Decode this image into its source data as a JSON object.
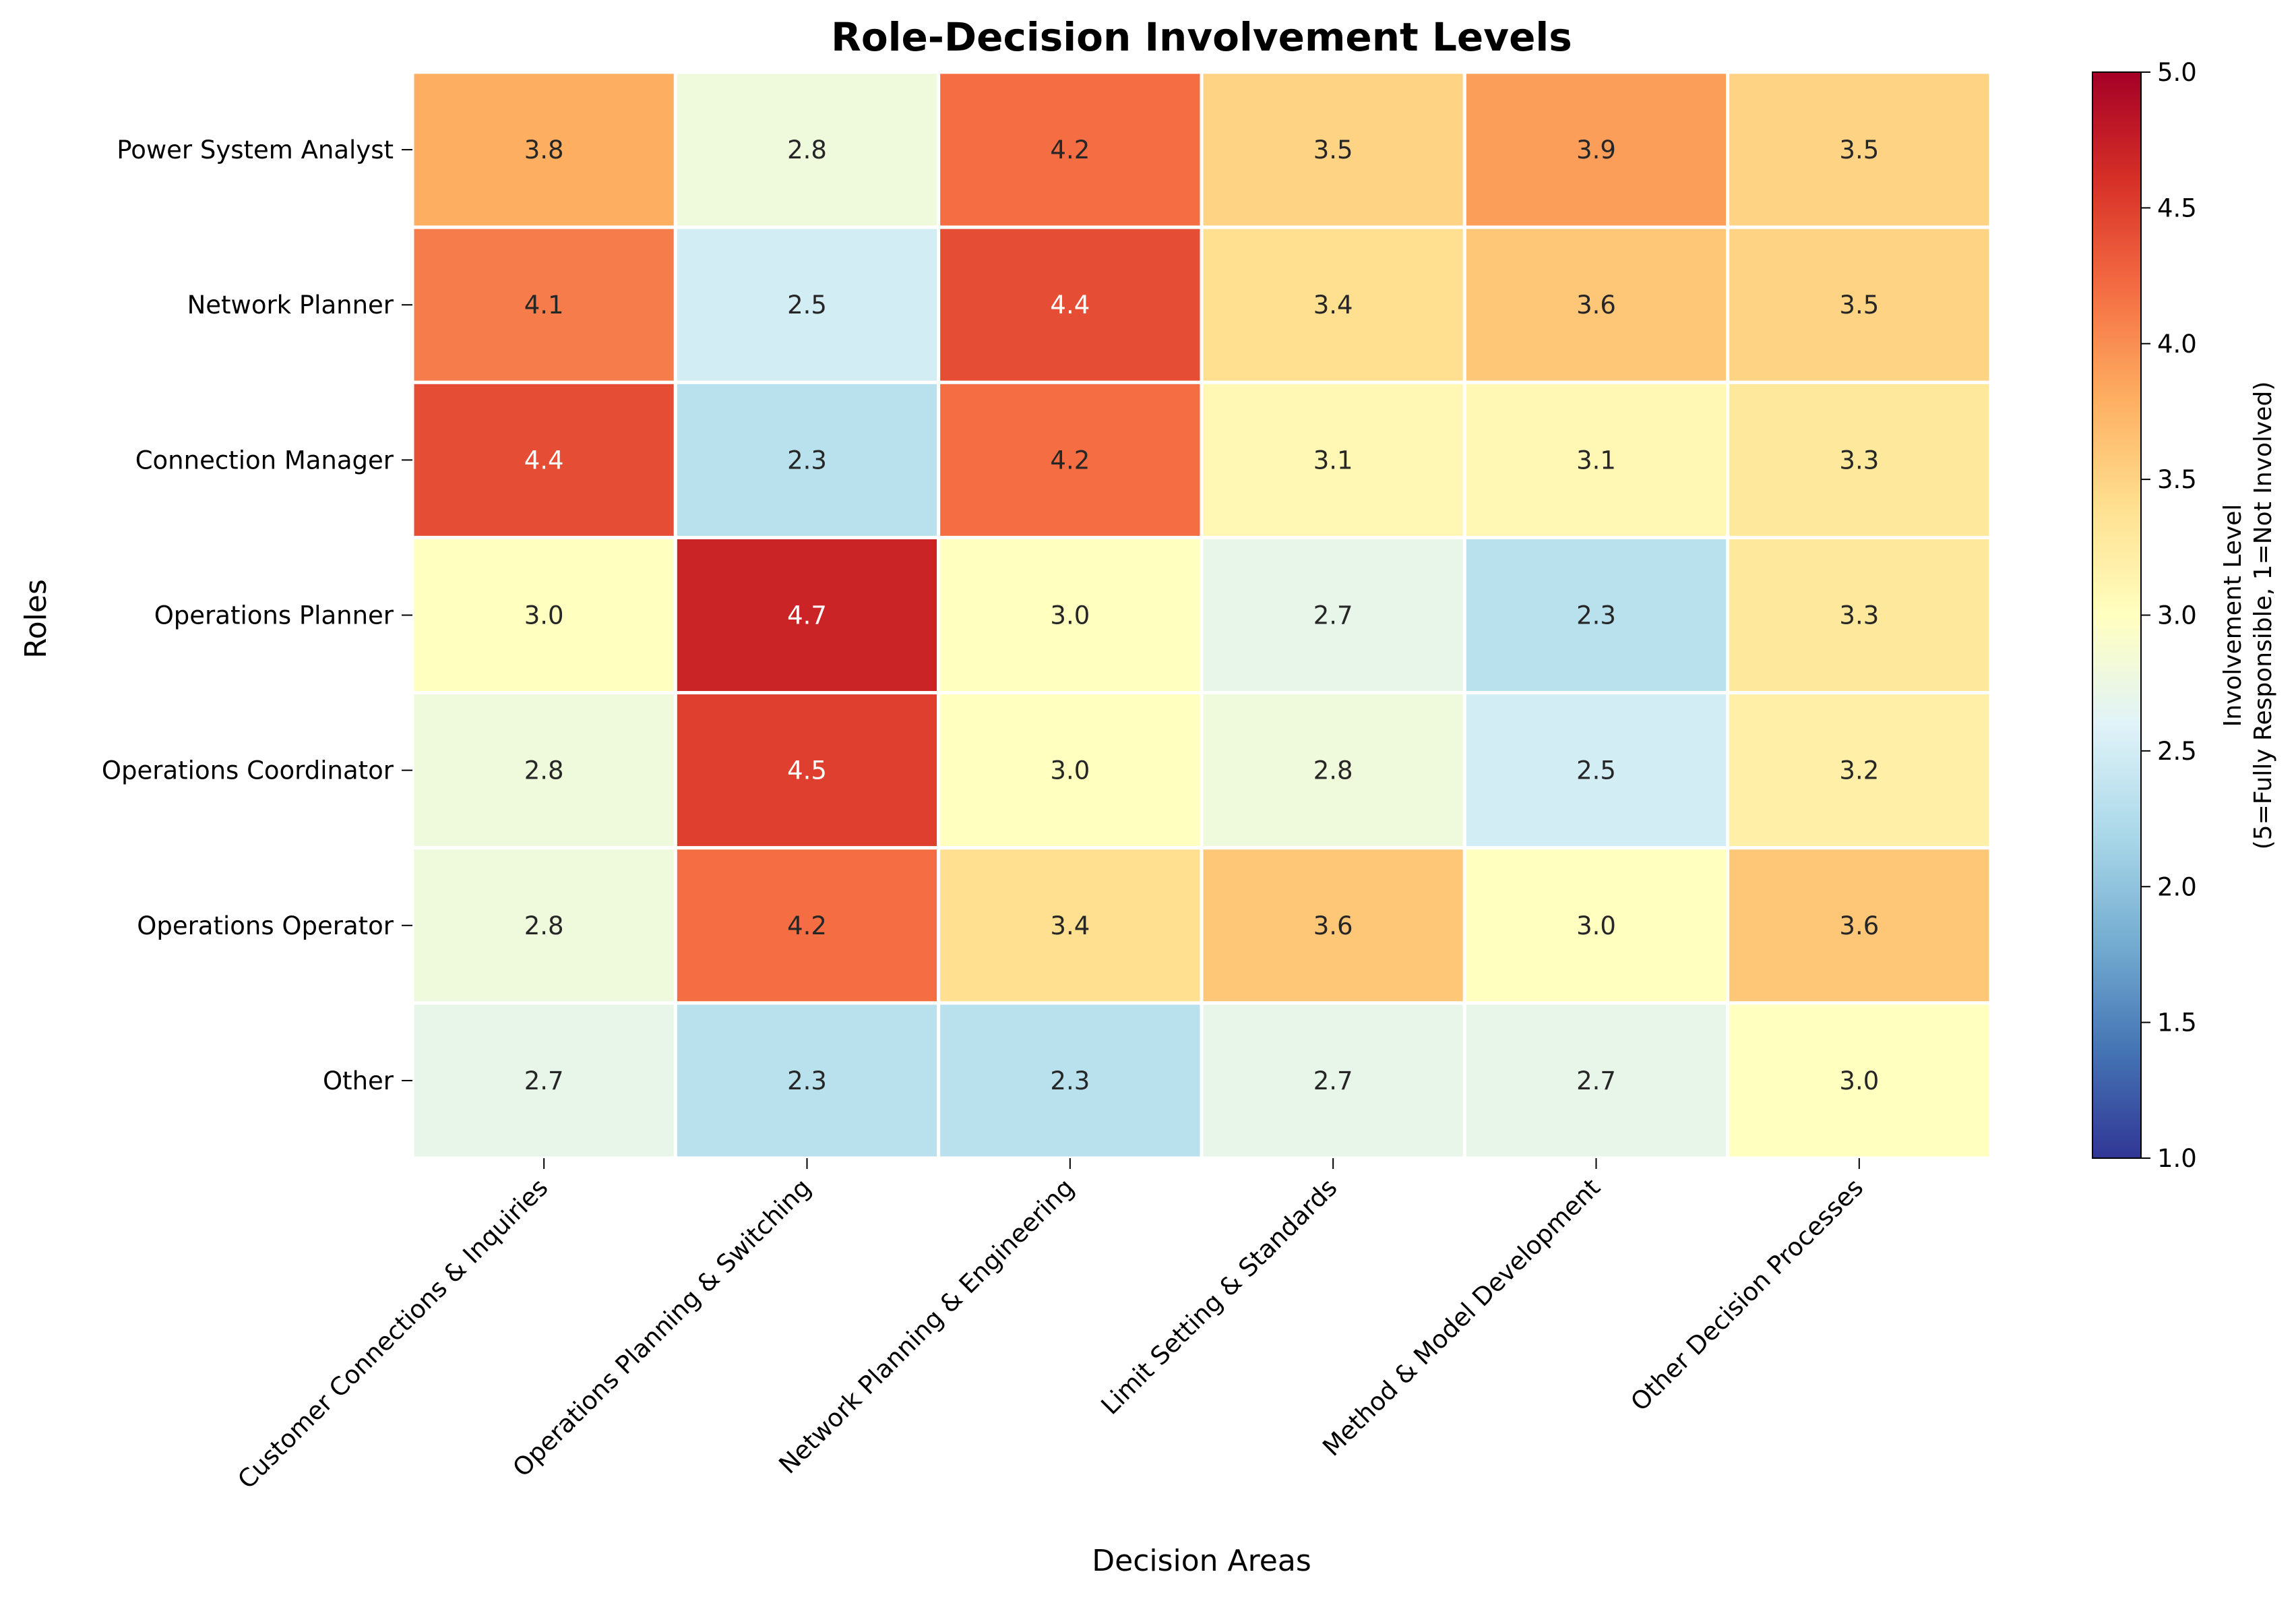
{
  "chart_data": {
    "type": "heatmap",
    "title": "Role-Decision Involvement Levels",
    "xlabel": "Decision Areas",
    "ylabel": "Roles",
    "columns": [
      "Customer Connections & Inquiries",
      "Operations Planning & Switching",
      "Network Planning & Engineering",
      "Limit Setting & Standards",
      "Method & Model Development",
      "Other Decision Processes"
    ],
    "rows": [
      "Power System Analyst",
      "Network Planner",
      "Connection Manager",
      "Operations Planner",
      "Operations Coordinator",
      "Operations Operator",
      "Other"
    ],
    "values": [
      [
        3.8,
        2.8,
        4.2,
        3.5,
        3.9,
        3.5
      ],
      [
        4.1,
        2.5,
        4.4,
        3.4,
        3.6,
        3.5
      ],
      [
        4.4,
        2.3,
        4.2,
        3.1,
        3.1,
        3.3
      ],
      [
        3.0,
        4.7,
        3.0,
        2.7,
        2.3,
        3.3
      ],
      [
        2.8,
        4.5,
        3.0,
        2.8,
        2.5,
        3.2
      ],
      [
        2.8,
        4.2,
        3.4,
        3.6,
        3.0,
        3.6
      ],
      [
        2.7,
        2.3,
        2.3,
        2.7,
        2.7,
        3.0
      ]
    ],
    "colorbar": {
      "label_line1": "Involvement Level",
      "label_line2": "(5=Fully Responsible, 1=Not Involved)",
      "range": [
        1.0,
        5.0
      ],
      "ticks": [
        "1.0",
        "1.5",
        "2.0",
        "2.5",
        "3.0",
        "3.5",
        "4.0",
        "4.5",
        "5.0"
      ],
      "colormap": "RdYlBu_r"
    }
  }
}
